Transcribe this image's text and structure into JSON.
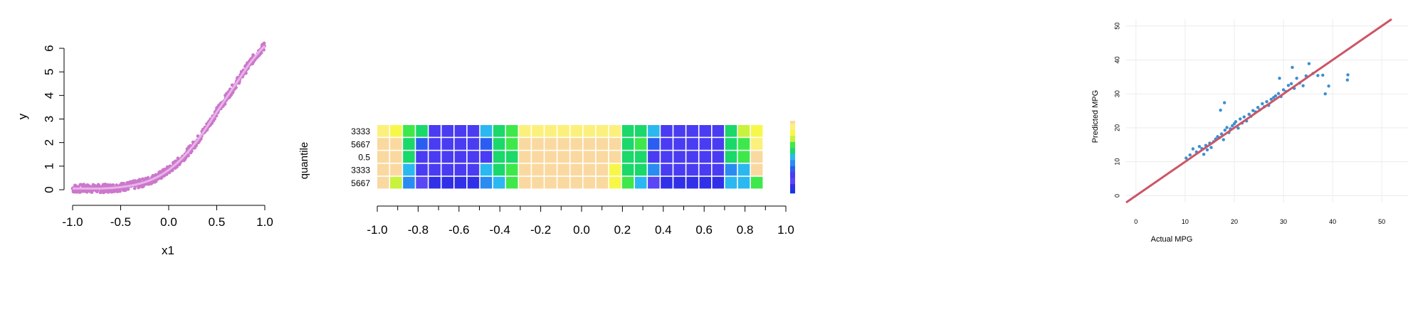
{
  "chart_data": [
    {
      "type": "scatter",
      "title": "",
      "xlabel": "x1",
      "ylabel": "y",
      "xlim": [
        -1.0,
        1.0
      ],
      "ylim": [
        0,
        6
      ],
      "x_ticks": [
        "-1.0",
        "-0.5",
        "0.0",
        "0.5",
        "1.0"
      ],
      "y_ticks": [
        "0",
        "1",
        "2",
        "3",
        "4",
        "5",
        "6"
      ],
      "point_color": "#cc77cc",
      "fit_color": "#e8b4e8",
      "series": [
        {
          "x": [
            -1.0,
            -0.95,
            -0.9,
            -0.85,
            -0.8,
            -0.75,
            -0.7,
            -0.65,
            -0.6,
            -0.55,
            -0.5,
            -0.45,
            -0.4,
            -0.35,
            -0.3,
            -0.25,
            -0.2,
            -0.15,
            -0.1,
            -0.05,
            0.0,
            0.05,
            0.1,
            0.15,
            0.2,
            0.25,
            0.3,
            0.35,
            0.4,
            0.45,
            0.5,
            0.55,
            0.6,
            0.65,
            0.7,
            0.75,
            0.8,
            0.85,
            0.9,
            0.95,
            1.0
          ],
          "y": [
            0.05,
            0.05,
            0.05,
            0.05,
            0.05,
            0.05,
            0.05,
            0.06,
            0.07,
            0.09,
            0.11,
            0.14,
            0.17,
            0.21,
            0.26,
            0.32,
            0.39,
            0.48,
            0.58,
            0.7,
            0.84,
            1.0,
            1.18,
            1.38,
            1.6,
            1.84,
            2.1,
            2.38,
            2.68,
            3.0,
            3.3,
            3.6,
            3.9,
            4.2,
            4.5,
            4.8,
            5.1,
            5.4,
            5.65,
            5.9,
            6.1
          ]
        }
      ]
    },
    {
      "type": "heatmap",
      "title": "",
      "xlabel": "",
      "ylabel": "quantile",
      "xlim": [
        -1.0,
        1.0
      ],
      "x_ticks": [
        "-1.0",
        "-0.8",
        "-0.6",
        "-0.4",
        "-0.2",
        "0.0",
        "0.2",
        "0.4",
        "0.6",
        "0.8",
        "1.0"
      ],
      "row_labels": [
        "3333",
        "5667",
        "0.5",
        "3333",
        "5667"
      ],
      "palette": [
        "#fad9a0",
        "#fcf07c",
        "#f7f74a",
        "#c8f23c",
        "#3ee84a",
        "#1ad86a",
        "#2bb8f0",
        "#2a8cf0",
        "#2b5ef0",
        "#4a3cf2",
        "#5a46f5",
        "#3030e8",
        "#1438e0"
      ],
      "levels_note": "",
      "rows": [
        [
          1,
          2,
          4,
          5,
          9,
          9,
          9,
          9,
          6,
          5,
          4,
          1,
          1,
          1,
          1,
          1,
          1,
          1,
          1,
          5,
          5,
          6,
          9,
          9,
          9,
          9,
          9,
          5,
          3,
          2
        ],
        [
          0,
          0,
          5,
          8,
          9,
          9,
          9,
          9,
          8,
          5,
          4,
          0,
          0,
          0,
          0,
          0,
          0,
          0,
          0,
          5,
          4,
          8,
          9,
          9,
          9,
          9,
          9,
          5,
          4,
          1
        ],
        [
          0,
          0,
          5,
          9,
          9,
          9,
          9,
          9,
          9,
          5,
          5,
          0,
          0,
          0,
          0,
          0,
          0,
          0,
          0,
          5,
          5,
          9,
          9,
          9,
          9,
          9,
          9,
          5,
          4,
          0
        ],
        [
          0,
          0,
          6,
          9,
          9,
          9,
          9,
          9,
          6,
          5,
          4,
          0,
          0,
          0,
          0,
          0,
          0,
          0,
          2,
          5,
          5,
          7,
          9,
          9,
          9,
          9,
          9,
          7,
          6,
          0
        ],
        [
          0,
          3,
          7,
          10,
          11,
          11,
          11,
          11,
          7,
          6,
          4,
          0,
          0,
          0,
          0,
          0,
          0,
          0,
          2,
          4,
          6,
          10,
          11,
          11,
          11,
          11,
          11,
          6,
          6,
          4
        ]
      ],
      "legend_labels": []
    },
    {
      "type": "scatter",
      "title": "",
      "xlabel": "Actual MPG",
      "ylabel": "Predicted MPG",
      "xlim": [
        -2,
        52
      ],
      "ylim": [
        -2,
        52
      ],
      "x_ticks": [
        "0",
        "10",
        "20",
        "30",
        "40",
        "50"
      ],
      "y_ticks": [
        "0",
        "10",
        "20",
        "30",
        "40",
        "50"
      ],
      "point_color": "#3a8fd1",
      "line_color": "#cc5566",
      "line": {
        "x": [
          -2,
          52
        ],
        "y": [
          -2,
          52
        ]
      },
      "series": [
        {
          "x": [
            10.2,
            11.0,
            11.6,
            12.3,
            12.9,
            13.4,
            13.8,
            14.2,
            14.5,
            15.0,
            15.3,
            15.8,
            16.2,
            16.6,
            17.0,
            17.4,
            17.8,
            18.1,
            18.5,
            18.9,
            19.2,
            19.6,
            20.0,
            20.3,
            20.8,
            21.2,
            21.6,
            22.0,
            22.5,
            23.0,
            23.4,
            23.8,
            24.3,
            24.8,
            25.2,
            25.7,
            26.1,
            26.6,
            27.0,
            27.5,
            28.0,
            28.4,
            29.0,
            29.5,
            30.0,
            30.5,
            31.0,
            31.6,
            32.2,
            32.7,
            33.3,
            34.0,
            34.6,
            35.2,
            36.0,
            37.0,
            38.0,
            38.5,
            39.2,
            43.1,
            43.0,
            18.0,
            17.2,
            31.8,
            29.2
          ],
          "y": [
            11.1,
            12.0,
            13.8,
            12.9,
            14.5,
            13.9,
            12.2,
            14.8,
            13.5,
            15.5,
            14.2,
            15.9,
            16.7,
            17.4,
            17.1,
            18.2,
            16.5,
            19.3,
            20.1,
            18.6,
            19.7,
            20.6,
            21.2,
            21.8,
            19.9,
            22.6,
            21.4,
            23.2,
            22.0,
            24.0,
            23.4,
            25.1,
            24.7,
            26.0,
            25.3,
            27.1,
            26.2,
            27.7,
            26.6,
            28.4,
            28.9,
            29.4,
            30.1,
            29.2,
            31.2,
            30.7,
            32.5,
            33.0,
            31.6,
            34.6,
            33.2,
            32.4,
            35.3,
            38.9,
            36.0,
            35.4,
            35.5,
            30.0,
            32.3,
            35.6,
            34.1,
            27.4,
            25.2,
            37.8,
            34.6
          ]
        }
      ]
    }
  ]
}
